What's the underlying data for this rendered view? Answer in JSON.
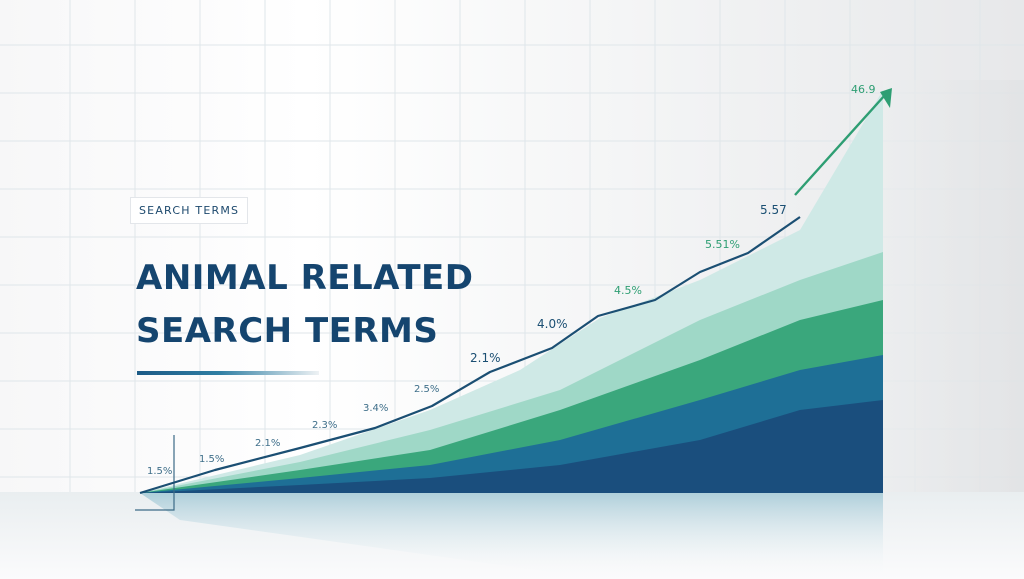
{
  "header": {
    "tag_label": "SEARCH TERMS",
    "title_line1": "ANIMAL RELATED",
    "title_line2": "SEARCH TERMS"
  },
  "colors": {
    "title": "#15456f",
    "line": "#1b4f73",
    "arrow": "#2e9e73",
    "band_lightest": "#cfe9e6",
    "band_light": "#9fd8c7",
    "band_green": "#3aa77c",
    "band_teal": "#1e6f96",
    "band_dark": "#1a4e7d"
  },
  "chart_data": {
    "type": "line",
    "title": "ANIMAL RELATED SEARCH TERMS",
    "xlabel": "",
    "ylabel": "",
    "grid": true,
    "data_labels": [
      "1.5%",
      "1.5%",
      "2.1%",
      "2.3%",
      "3.4%",
      "2.5%",
      "2.1%",
      "4.0%",
      "4.5%",
      "5.51%",
      "5.57",
      "46.9"
    ],
    "series": [
      {
        "values": [
          1.5,
          1.5,
          2.1,
          2.3,
          3.4,
          2.5,
          2.1,
          4.0,
          4.5,
          5.51,
          5.57,
          46.9
        ]
      }
    ],
    "stacked_bands": 5
  }
}
